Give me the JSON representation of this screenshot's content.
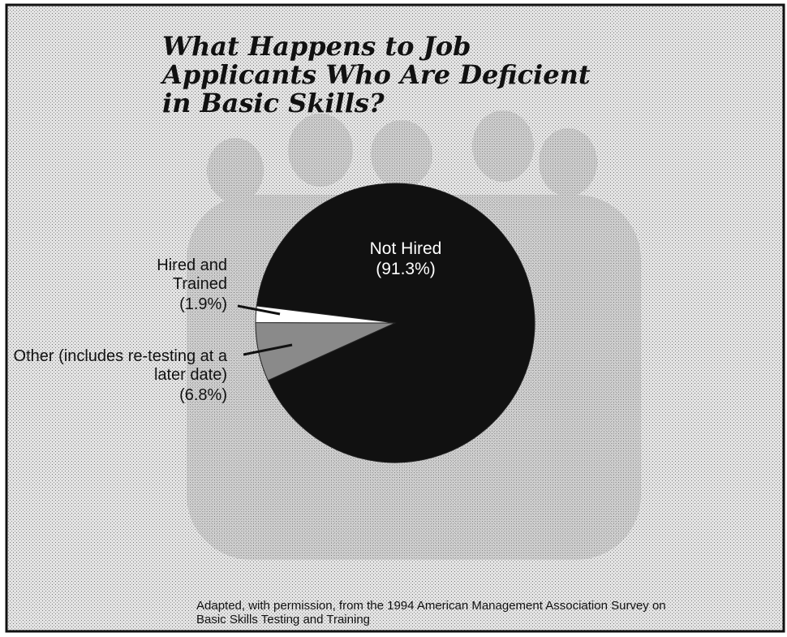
{
  "chart_data": {
    "type": "pie",
    "title": "What Happens to Job Applicants Who Are Deficient in Basic Skills?",
    "categories": [
      "Not Hired",
      "Hired and Trained",
      "Other (includes re-testing at a later date)"
    ],
    "values": [
      91.3,
      1.9,
      6.8
    ],
    "value_labels": [
      "(91.3%)",
      "(1.9%)",
      "(6.8%)"
    ],
    "colors": [
      "#111111",
      "#ffffff",
      "#8a8a8a"
    ],
    "source": "Adapted, with permission, from the 1994 American Management Association Survey on Basic Skills Testing and Training"
  }
}
